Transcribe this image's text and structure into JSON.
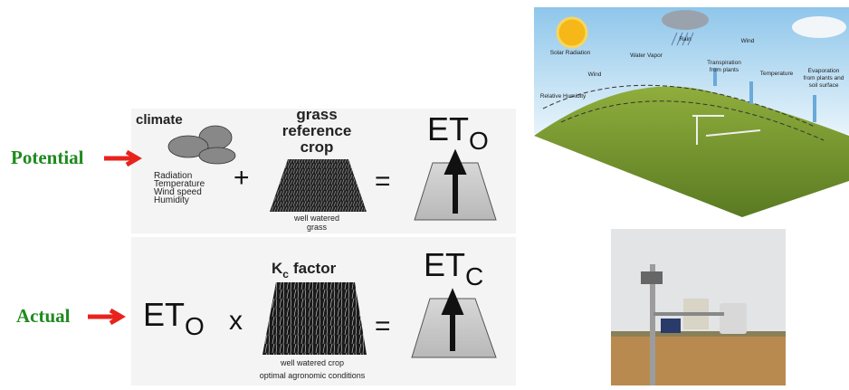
{
  "potential": {
    "label": "Potential",
    "climate_title": "climate",
    "climate_factors": [
      "Radiation",
      "Temperature",
      "Wind speed",
      "Humidity"
    ],
    "plus": "+",
    "crop_title": [
      "grass",
      "reference",
      "crop"
    ],
    "crop_caption": [
      "well watered",
      "grass"
    ],
    "equals": "=",
    "result": {
      "main": "ET",
      "sub": "O"
    }
  },
  "actual": {
    "label": "Actual",
    "input": {
      "main": "ET",
      "sub": "O"
    },
    "times": "x",
    "factor": {
      "main": "K",
      "sub": "c",
      "rest": "factor"
    },
    "crop_caption": [
      "well watered  crop",
      "optimal agronomic   conditions"
    ],
    "equals": "=",
    "result": {
      "main": "ET",
      "sub": "C"
    }
  },
  "landscape_labels": [
    {
      "lines": [
        "Solar Radiation"
      ]
    },
    {
      "lines": [
        "Rain"
      ]
    },
    {
      "lines": [
        "Wind"
      ]
    },
    {
      "lines": [
        "Water Vapor"
      ]
    },
    {
      "lines": [
        "Wind"
      ]
    },
    {
      "lines": [
        "Transpiration",
        "from plants"
      ]
    },
    {
      "lines": [
        "Temperature"
      ]
    },
    {
      "lines": [
        "Evaporation",
        "from plants and",
        "soil surface"
      ]
    },
    {
      "lines": [
        "Relative Humidity"
      ]
    }
  ]
}
